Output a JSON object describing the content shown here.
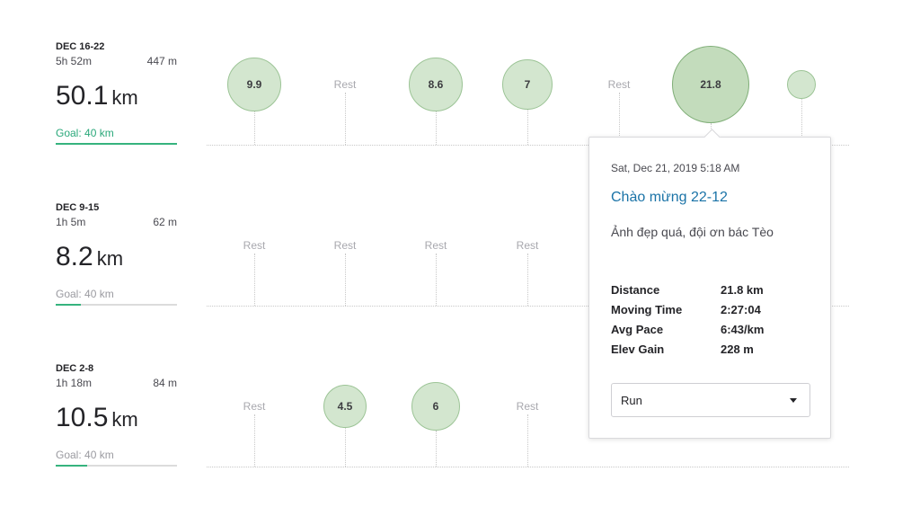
{
  "weeks": [
    {
      "range": "DEC 16-22",
      "moving_time": "5h 52m",
      "elevation": "447 m",
      "distance": "50.1",
      "unit": "km",
      "goal": "Goal: 40 km",
      "goal_progress": 1.0,
      "days": [
        {
          "type": "activity",
          "label": "9.9",
          "value": 9.9
        },
        {
          "type": "rest",
          "label": "Rest"
        },
        {
          "type": "activity",
          "label": "8.6",
          "value": 8.6
        },
        {
          "type": "activity",
          "label": "7",
          "value": 7
        },
        {
          "type": "rest",
          "label": "Rest"
        },
        {
          "type": "activity",
          "label": "21.8",
          "value": 21.8,
          "selected": true
        },
        {
          "type": "activity",
          "label": "",
          "value": 3
        }
      ]
    },
    {
      "range": "DEC 9-15",
      "moving_time": "1h 5m",
      "elevation": "62 m",
      "distance": "8.2",
      "unit": "km",
      "goal": "Goal: 40 km",
      "goal_progress": 0.205,
      "days": [
        {
          "type": "rest",
          "label": "Rest"
        },
        {
          "type": "rest",
          "label": "Rest"
        },
        {
          "type": "rest",
          "label": "Rest"
        },
        {
          "type": "rest",
          "label": "Rest"
        },
        {
          "type": "hidden"
        },
        {
          "type": "hidden"
        },
        {
          "type": "hidden"
        }
      ]
    },
    {
      "range": "DEC 2-8",
      "moving_time": "1h 18m",
      "elevation": "84 m",
      "distance": "10.5",
      "unit": "km",
      "goal": "Goal: 40 km",
      "goal_progress": 0.2625,
      "days": [
        {
          "type": "rest",
          "label": "Rest"
        },
        {
          "type": "activity",
          "label": "4.5",
          "value": 4.5
        },
        {
          "type": "activity",
          "label": "6",
          "value": 6
        },
        {
          "type": "rest",
          "label": "Rest"
        },
        {
          "type": "hidden"
        },
        {
          "type": "hidden"
        },
        {
          "type": "hidden"
        }
      ]
    }
  ],
  "popover": {
    "date": "Sat, Dec 21, 2019 5:18 AM",
    "title": "Chào mừng 22-12",
    "description": "Ảnh đẹp quá, đội ơn bác Tèo",
    "stats": [
      {
        "label": "Distance",
        "value": "21.8 km"
      },
      {
        "label": "Moving Time",
        "value": "2:27:04"
      },
      {
        "label": "Avg Pace",
        "value": "6:43/km"
      },
      {
        "label": "Elev Gain",
        "value": "228 m"
      }
    ],
    "activity_type": "Run"
  },
  "colors": {
    "bubble_fill": "#d3e6cf",
    "bubble_stroke": "#9cc496",
    "goal_bar": "#36b37e",
    "link": "#1a73a7"
  }
}
